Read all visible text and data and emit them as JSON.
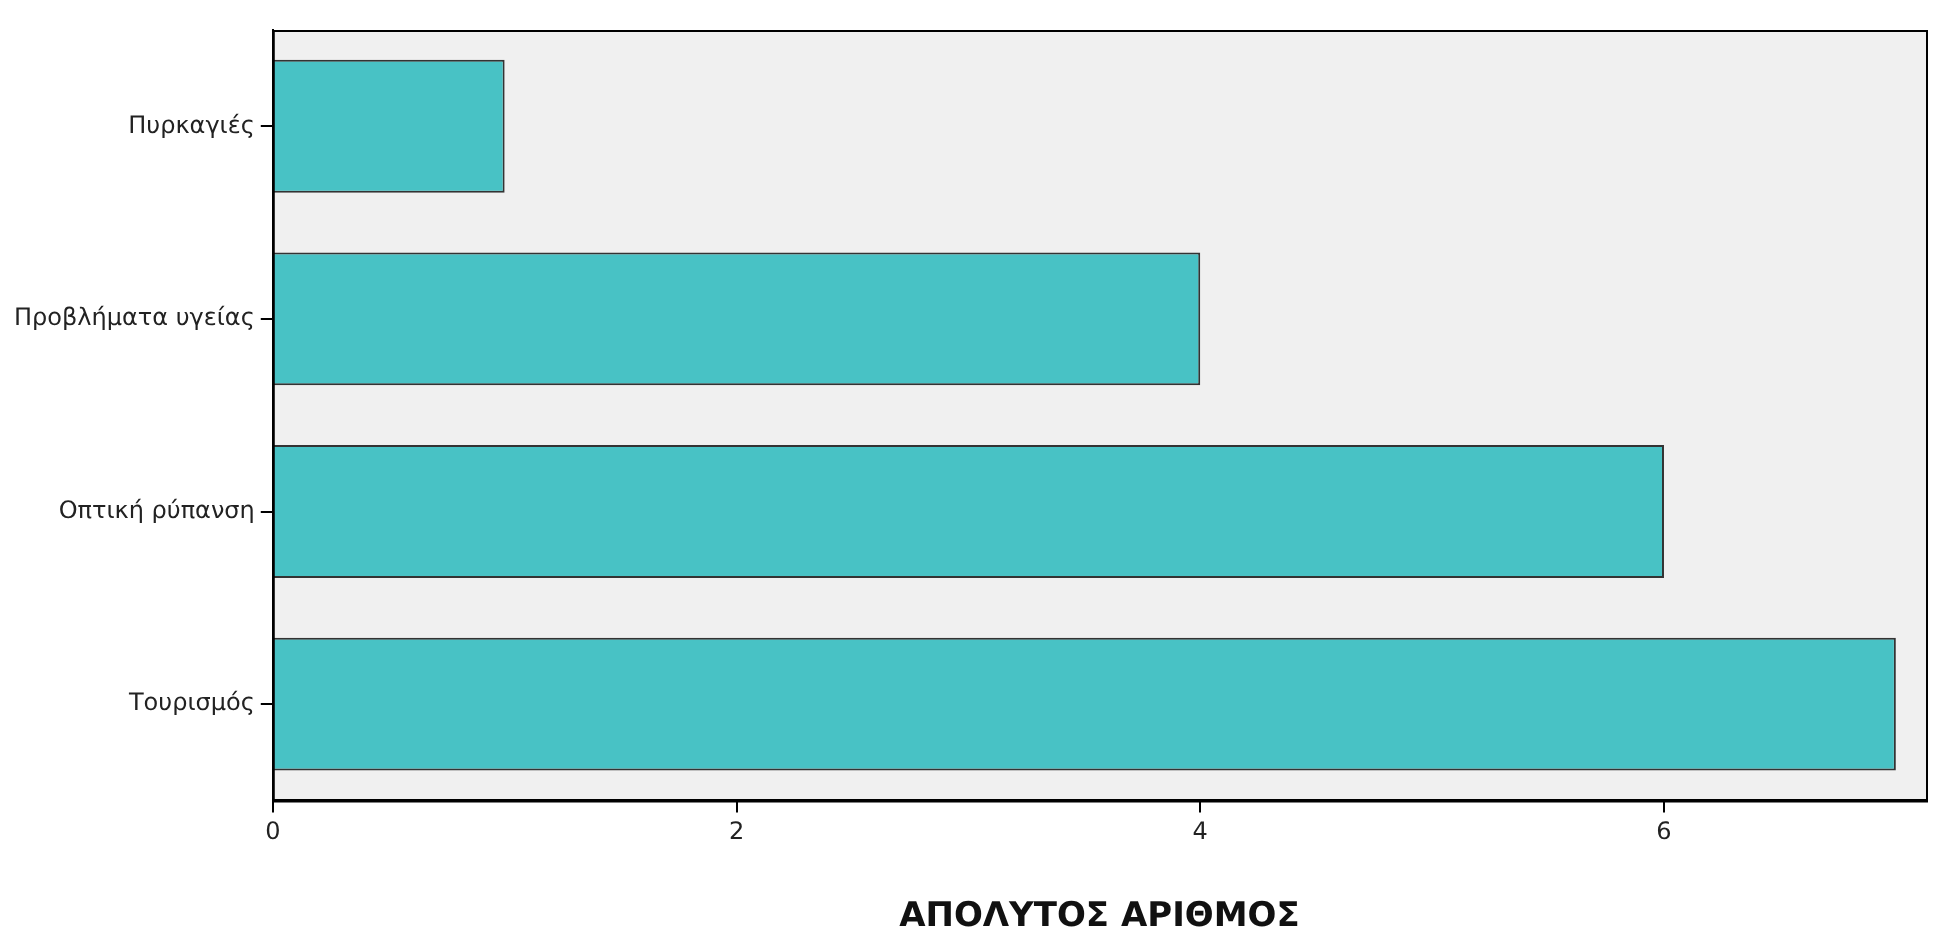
{
  "chart_data": {
    "type": "bar",
    "orientation": "horizontal",
    "xlabel": "ΑΠΟΛΥΤΟΣ ΑΡΙΘΜΟΣ",
    "categories": [
      "Πυρκαγιές",
      "Προβλήματα υγείας",
      "Οπτική ρύπανση",
      "Τουρισμός"
    ],
    "values": [
      1,
      4,
      6,
      7
    ],
    "color": "#48c2c5",
    "xlim": [
      0,
      7.13
    ],
    "xticks": [
      0,
      2,
      4,
      6
    ],
    "grid": false,
    "legend": false
  }
}
